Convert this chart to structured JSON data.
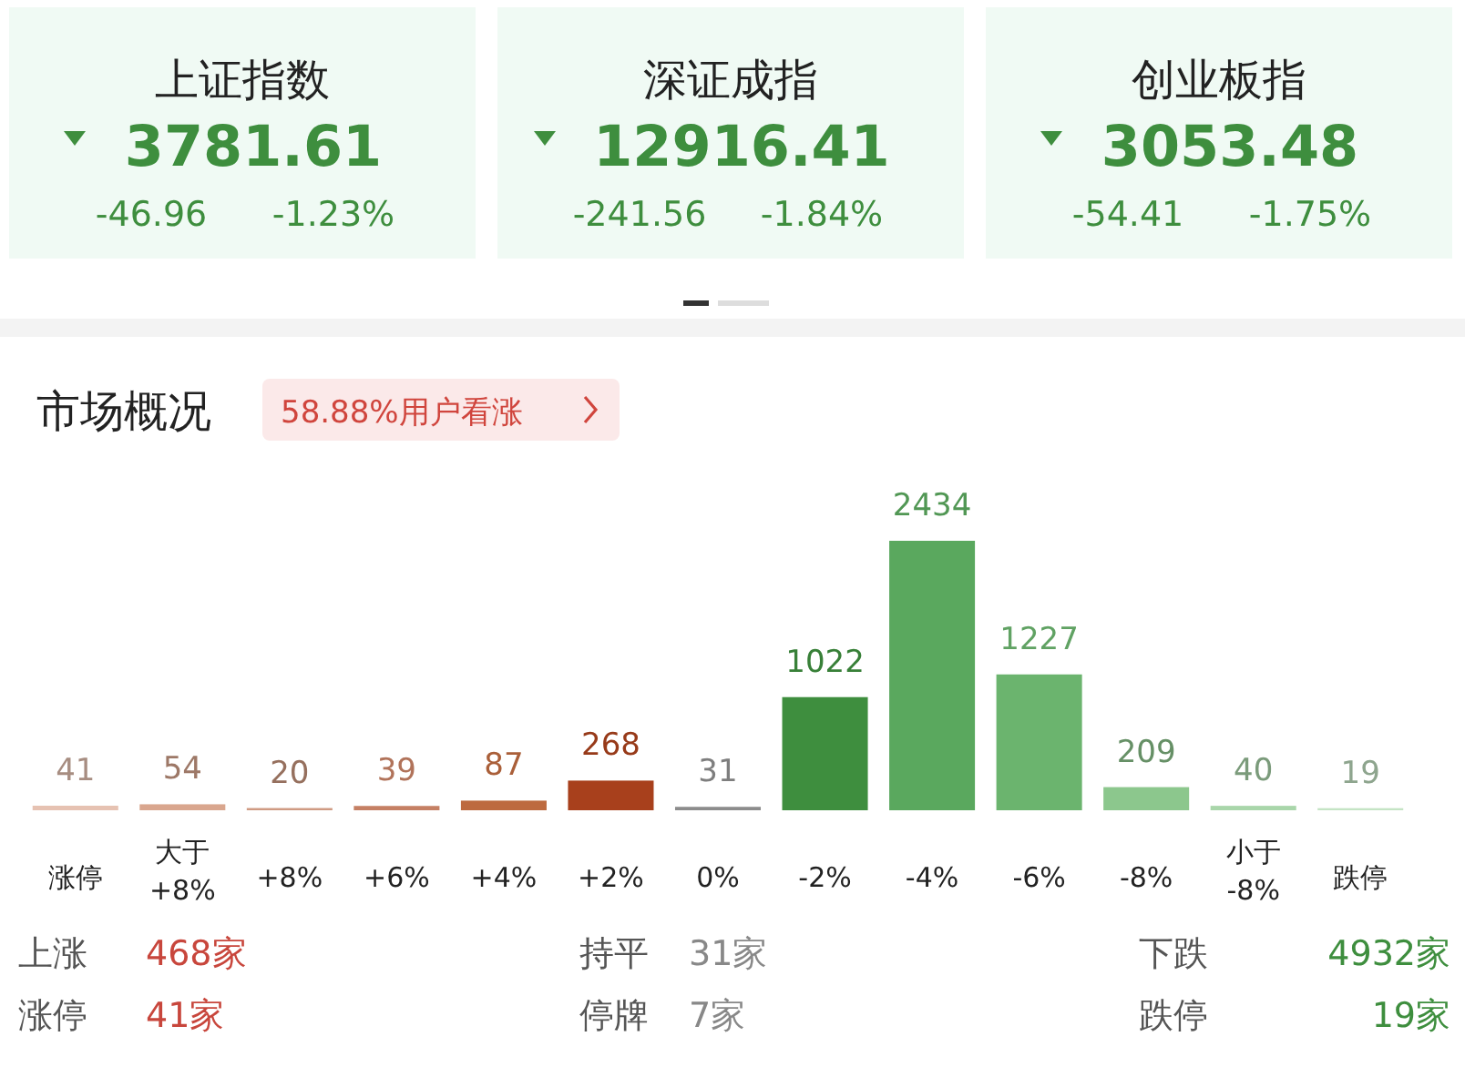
{
  "chart_data": [
    {
      "type": "other",
      "annotations": [
        "上证指数",
        "3781.61",
        "-46.96",
        "-1.23%",
        "深证成指",
        "12916.41",
        "-241.56",
        "-1.84%",
        "创业板指",
        "3053.48",
        "-54.41",
        "-1.75%"
      ]
    },
    {
      "type": "bar",
      "title": "市场概况",
      "subtitle": "58.88%用户看涨",
      "categories": [
        "涨停",
        "大于 +8%",
        "+8%",
        "+6%",
        "+4%",
        "+2%",
        "0%",
        "-2%",
        "-4%",
        "-6%",
        "-8%",
        "小于 -8%",
        "跌停"
      ],
      "values": [
        41,
        54,
        20,
        39,
        87,
        268,
        31,
        1022,
        2434,
        1227,
        209,
        40,
        19
      ],
      "colors": [
        "#e6c2b2",
        "#d9a68e",
        "#cf9a82",
        "#c58064",
        "#bd6a3f",
        "#a8401c",
        "#8c8c8c",
        "#3e8e3e",
        "#5aa85e",
        "#6bb46e",
        "#8cc78d",
        "#a9d6aa",
        "#c4e4c4"
      ],
      "data_labels": true,
      "annotations": [
        "上涨",
        "468家",
        "持平",
        "31家",
        "下跌",
        "4932家",
        "涨停",
        "41家",
        "停牌",
        "7家",
        "跌停",
        "19家"
      ]
    }
  ]
}
